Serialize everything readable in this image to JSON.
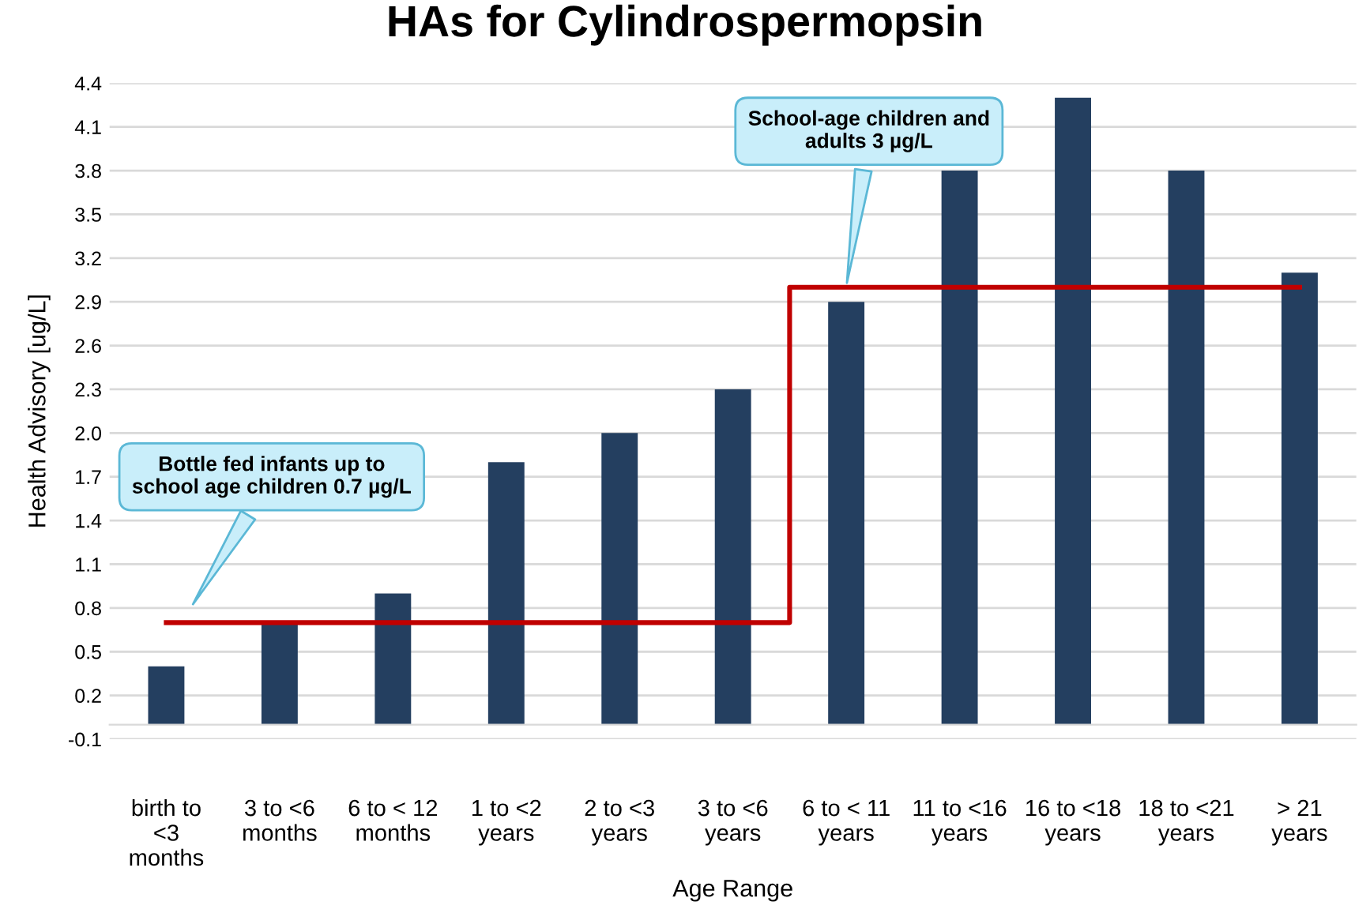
{
  "chart_data": {
    "type": "bar",
    "title": "HAs for Cylindrospermopsin",
    "xlabel": "Age Range",
    "ylabel": "Health Advisory [ug/L]",
    "categories": [
      "birth to\n<3\nmonths",
      "3 to <6\nmonths",
      "6 to < 12\nmonths",
      "1 to <2\nyears",
      "2 to <3\nyears",
      "3 to <6\nyears",
      "6 to < 11\nyears",
      "11 to <16\nyears",
      "16 to <18\nyears",
      "18 to <21\nyears",
      "> 21\nyears"
    ],
    "series": [
      {
        "type": "bar",
        "color": "#243f60",
        "values": [
          0.4,
          0.7,
          0.9,
          1.8,
          2.0,
          2.3,
          2.9,
          3.8,
          4.3,
          3.8,
          3.1
        ]
      },
      {
        "type": "step",
        "color": "#c00000",
        "values": [
          0.7,
          0.7,
          0.7,
          0.7,
          0.7,
          0.7,
          3.0,
          3.0,
          3.0,
          3.0,
          3.0
        ]
      }
    ],
    "annotations": [
      "Bottle fed infants up to\nschool age children 0.7 µg/L",
      {
        "text": "School-age children and\nadults 3 µg/L",
        "x": "6 to < 11\nyears",
        "y": 3.0
      }
    ],
    "ylim": [
      -0.1,
      4.4
    ],
    "yticks": [
      -0.1,
      0.2,
      0.5,
      0.8,
      1.1,
      1.4,
      1.7,
      {
        "value": 2.0,
        "label": "2.0"
      },
      2.3,
      2.6,
      2.9,
      3.2,
      3.5,
      3.8,
      4.1,
      4.4
    ],
    "grid": "y"
  }
}
